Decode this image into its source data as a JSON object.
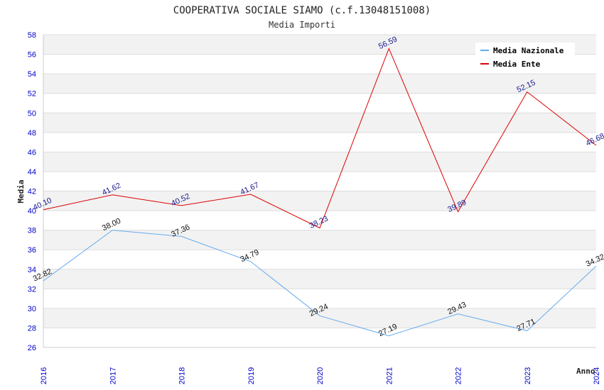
{
  "chart_data": {
    "type": "line",
    "title": "COOPERATIVA SOCIALE SIAMO (c.f.13048151008)",
    "subtitle": "Media Importi",
    "xlabel": "Anno",
    "ylabel": "Media",
    "x": [
      "2016",
      "2017",
      "2018",
      "2019",
      "2020",
      "2021",
      "2022",
      "2023",
      "2024"
    ],
    "ylim": [
      26,
      58
    ],
    "yticks": [
      26,
      28,
      30,
      32,
      34,
      36,
      38,
      40,
      42,
      44,
      46,
      48,
      50,
      52,
      54,
      56,
      58
    ],
    "grid": true,
    "legend_position": "top-right",
    "series": [
      {
        "name": "Media Nazionale",
        "color": "#66aaee",
        "values": [
          32.82,
          38.0,
          37.36,
          34.79,
          29.24,
          27.19,
          29.43,
          27.71,
          34.32
        ],
        "labels": [
          "32.82",
          "38.00",
          "37.36",
          "34.79",
          "29.24",
          "27.19",
          "29.43",
          "27.71",
          "34.32"
        ]
      },
      {
        "name": "Media Ente",
        "color": "#dd0000",
        "values": [
          40.1,
          41.62,
          40.52,
          41.67,
          38.23,
          56.59,
          39.89,
          52.15,
          46.68
        ],
        "labels": [
          "40.10",
          "41.62",
          "40.52",
          "41.67",
          "38.23",
          "56.59",
          "39.89",
          "52.15",
          "46.68"
        ]
      }
    ]
  }
}
